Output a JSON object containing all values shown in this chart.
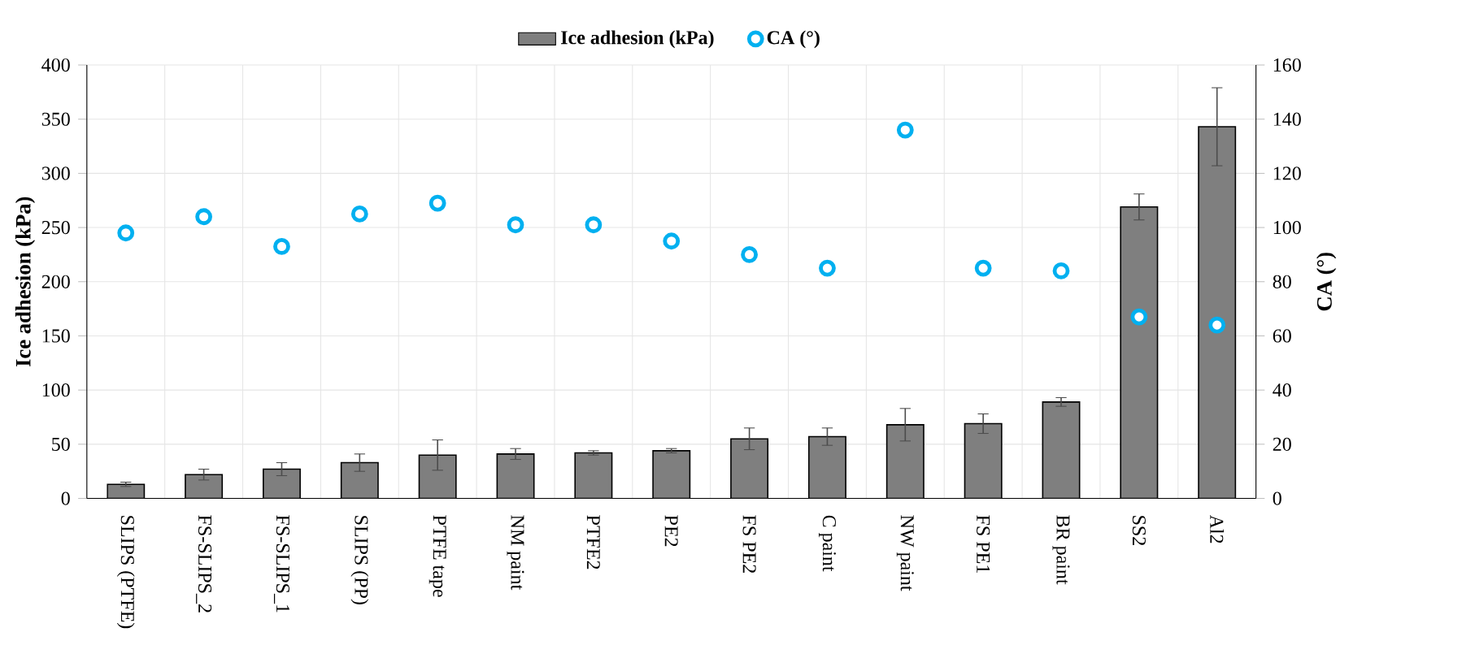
{
  "chart_data": {
    "type": "bar",
    "xlabel": null,
    "ylabel": "Ice adhesion (kPa)",
    "y2label": "CA (°)",
    "categories": [
      "SLIPS (PTFE)",
      "FS-SLIPS_2",
      "FS-SLIPS_1",
      "SLIPS (PP)",
      "PTFE tape",
      "NM paint",
      "PTFE2",
      "PE2",
      "FS PE2",
      "C paint",
      "NW paint",
      "FS PE1",
      "BR paint",
      "SS2",
      "Al2"
    ],
    "series": [
      {
        "name": "Ice adhesion (kPa)",
        "color": "#7f7f7f",
        "values": [
          13,
          22,
          27,
          33,
          40,
          41,
          42,
          44,
          55,
          57,
          68,
          69,
          89,
          269,
          343
        ],
        "errors": [
          2,
          5,
          6,
          8,
          14,
          5,
          2,
          2,
          10,
          8,
          15,
          9,
          4,
          12,
          36
        ]
      },
      {
        "name": "CA (°)",
        "type": "scatter",
        "axis": "y2",
        "color": "#00b0f0",
        "values": [
          98,
          104,
          93,
          105,
          109,
          101,
          101,
          95,
          90,
          85,
          136,
          85,
          84,
          67,
          64
        ]
      }
    ],
    "ylim": [
      0,
      400
    ],
    "yticks": [
      0,
      50,
      100,
      150,
      200,
      250,
      300,
      350,
      400
    ],
    "y2lim": [
      0,
      160
    ],
    "y2ticks": [
      0,
      20,
      40,
      60,
      80,
      100,
      120,
      140,
      160
    ],
    "grid": true,
    "legend": "top",
    "marker": "circle"
  }
}
